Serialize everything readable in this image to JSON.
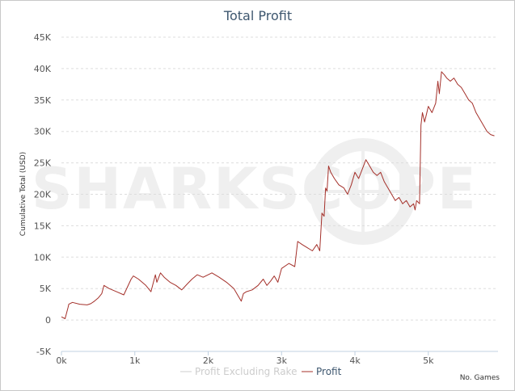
{
  "chart_data": {
    "type": "line",
    "title": "Total Profit",
    "ylabel": "Cumulative Total (USD)",
    "xlabel": "No. Games",
    "watermark": "SHARKSCOPE",
    "xlim": [
      0,
      5950
    ],
    "ylim": [
      -5000,
      45000
    ],
    "x_ticks": [
      0,
      1000,
      2000,
      3000,
      4000,
      5000
    ],
    "x_tick_labels": [
      "0k",
      "1k",
      "2k",
      "3k",
      "4k",
      "5k"
    ],
    "y_ticks": [
      -5000,
      0,
      5000,
      10000,
      15000,
      20000,
      25000,
      30000,
      35000,
      40000,
      45000
    ],
    "y_tick_labels": [
      "-5K",
      "0",
      "5K",
      "10K",
      "15K",
      "20K",
      "25K",
      "30K",
      "35K",
      "40K",
      "45K"
    ],
    "grid": true,
    "legend_position": "bottom-center",
    "series": [
      {
        "name": "Profit Excluding Rake",
        "color": "#cccccc",
        "x": [],
        "y": []
      },
      {
        "name": "Profit",
        "color": "#a4302a",
        "x": [
          0,
          50,
          90,
          100,
          150,
          250,
          350,
          400,
          450,
          500,
          550,
          580,
          650,
          750,
          850,
          950,
          980,
          1050,
          1150,
          1220,
          1280,
          1300,
          1350,
          1400,
          1480,
          1560,
          1640,
          1720,
          1780,
          1850,
          1930,
          2050,
          2150,
          2250,
          2350,
          2400,
          2450,
          2480,
          2520,
          2600,
          2680,
          2750,
          2800,
          2850,
          2900,
          2950,
          3000,
          3100,
          3180,
          3220,
          3280,
          3350,
          3420,
          3480,
          3520,
          3550,
          3580,
          3600,
          3620,
          3640,
          3670,
          3720,
          3780,
          3850,
          3900,
          3950,
          4000,
          4050,
          4100,
          4150,
          4200,
          4250,
          4300,
          4350,
          4400,
          4450,
          4500,
          4550,
          4600,
          4650,
          4700,
          4750,
          4800,
          4820,
          4840,
          4880,
          4900,
          4920,
          4950,
          5000,
          5050,
          5100,
          5130,
          5150,
          5180,
          5220,
          5250,
          5300,
          5350,
          5400,
          5450,
          5500,
          5550,
          5600,
          5650,
          5700,
          5750,
          5800,
          5850,
          5900
        ],
        "y": [
          500,
          200,
          2000,
          2500,
          2800,
          2500,
          2400,
          2600,
          3000,
          3500,
          4200,
          5500,
          5000,
          4500,
          4000,
          6500,
          7000,
          6500,
          5500,
          4500,
          7200,
          6000,
          7500,
          6800,
          6000,
          5500,
          4800,
          5800,
          6500,
          7200,
          6800,
          7500,
          6800,
          6000,
          5000,
          4000,
          3000,
          4200,
          4500,
          4800,
          5500,
          6500,
          5500,
          6200,
          7000,
          6000,
          8200,
          9000,
          8500,
          12500,
          12000,
          11500,
          11000,
          12000,
          11000,
          17000,
          16500,
          21000,
          20500,
          24500,
          23500,
          22500,
          21500,
          21000,
          20000,
          21500,
          23500,
          22500,
          24000,
          25500,
          24500,
          23500,
          23000,
          23500,
          22000,
          21000,
          20000,
          19000,
          19500,
          18500,
          19000,
          18000,
          18500,
          17500,
          19000,
          18500,
          31000,
          33000,
          31500,
          34000,
          33000,
          34500,
          38000,
          36000,
          39500,
          39000,
          38500,
          38000,
          38500,
          37500,
          37000,
          36000,
          35000,
          34500,
          33000,
          32000,
          31000,
          30000,
          29500,
          29300
        ]
      }
    ]
  }
}
